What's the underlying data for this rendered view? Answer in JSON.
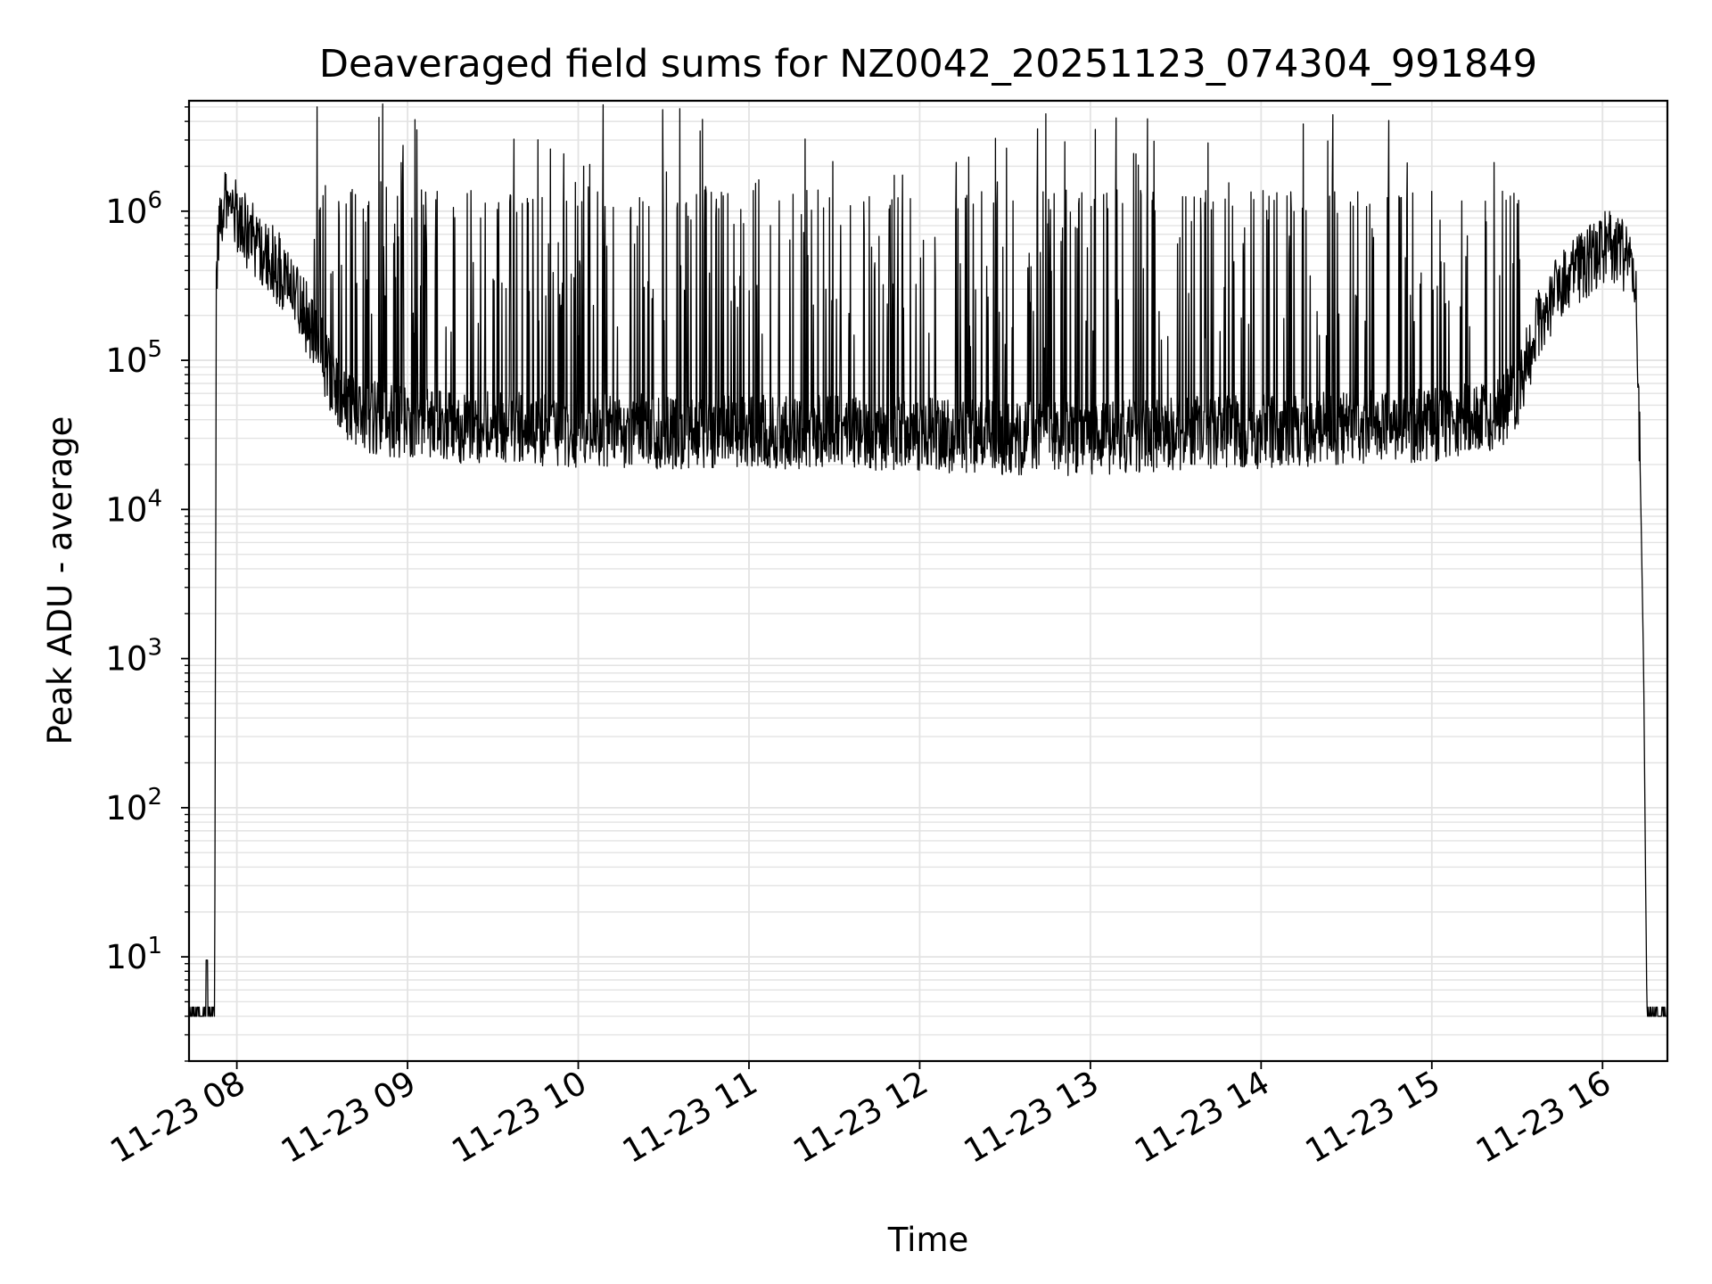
{
  "chart_data": {
    "type": "line",
    "title": "Deaveraged field sums for NZ0042_20251123_074304_991849",
    "xlabel": "Time",
    "ylabel": "Peak ADU - average",
    "yscale": "log",
    "ylim": [
      2,
      5500000
    ],
    "xlim_hours": [
      7.72,
      16.38
    ],
    "grid": true,
    "line_color": "#000000",
    "grid_color": "#e3e3e3",
    "x_ticks": [
      {
        "value": 8,
        "label": "11-23 08"
      },
      {
        "value": 9,
        "label": "11-23 09"
      },
      {
        "value": 10,
        "label": "11-23 10"
      },
      {
        "value": 11,
        "label": "11-23 11"
      },
      {
        "value": 12,
        "label": "11-23 12"
      },
      {
        "value": 13,
        "label": "11-23 13"
      },
      {
        "value": 14,
        "label": "11-23 14"
      },
      {
        "value": 15,
        "label": "11-23 15"
      },
      {
        "value": 16,
        "label": "11-23 16"
      }
    ],
    "y_ticks": [
      {
        "value": 10,
        "base": "10",
        "exp": "1"
      },
      {
        "value": 100,
        "base": "10",
        "exp": "2"
      },
      {
        "value": 1000,
        "base": "10",
        "exp": "3"
      },
      {
        "value": 10000,
        "base": "10",
        "exp": "4"
      },
      {
        "value": 100000,
        "base": "10",
        "exp": "5"
      },
      {
        "value": 1000000,
        "base": "10",
        "exp": "6"
      }
    ],
    "series": [
      {
        "name": "Peak ADU - average",
        "x_hours": [
          7.72,
          7.78,
          7.82,
          7.84,
          7.86,
          7.87,
          7.88,
          7.9,
          7.93,
          7.96,
          8.0,
          8.05,
          8.1,
          8.15,
          8.2,
          8.25,
          8.3,
          8.35,
          8.4,
          8.45,
          8.5,
          8.55,
          8.6,
          8.65,
          8.7,
          8.75,
          8.8,
          8.9,
          9.0,
          9.25,
          9.5,
          9.75,
          10.0,
          10.25,
          10.5,
          10.75,
          11.0,
          11.25,
          11.5,
          11.75,
          12.0,
          12.25,
          12.5,
          12.75,
          13.0,
          13.25,
          13.5,
          13.75,
          14.0,
          14.25,
          14.5,
          14.75,
          15.0,
          15.25,
          15.4,
          15.5,
          15.55,
          15.6,
          15.7,
          15.8,
          15.9,
          16.0,
          16.05,
          16.1,
          16.15,
          16.18,
          16.2,
          16.22,
          16.24,
          16.26,
          16.3,
          16.38
        ],
        "y_base": [
          4,
          4,
          4,
          4,
          4,
          4,
          400000,
          900000,
          1200000,
          1100000,
          900000,
          750000,
          650000,
          560000,
          480000,
          400000,
          330000,
          260000,
          200000,
          150000,
          110000,
          80000,
          60000,
          50000,
          45000,
          43000,
          42000,
          40000,
          38000,
          36000,
          35000,
          34000,
          34000,
          34000,
          33000,
          33000,
          33000,
          33000,
          33000,
          32000,
          32000,
          31000,
          30000,
          30000,
          30000,
          31000,
          32000,
          33000,
          33000,
          34000,
          35000,
          36000,
          37000,
          40000,
          45000,
          60000,
          90000,
          150000,
          250000,
          350000,
          450000,
          550000,
          600000,
          550000,
          450000,
          350000,
          200000,
          20000,
          1000,
          4,
          4,
          4
        ]
      }
    ]
  }
}
